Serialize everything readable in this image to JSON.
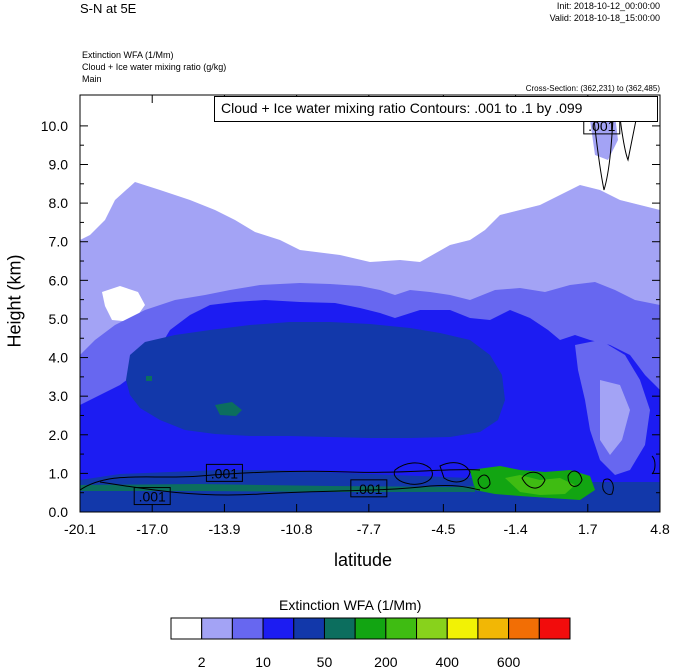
{
  "header": {
    "title": "S-N at 5E",
    "init": "Init: 2018-10-12_00:00:00",
    "valid": "Valid: 2018-10-18_15:00:00",
    "field1": "Extinction WFA   (1/Mm)",
    "field2": "Cloud + Ice water mixing ratio   (g/kg)",
    "field3": "Main",
    "cross_section": "Cross-Section: (362,231) to (362,485)"
  },
  "chart_data": {
    "type": "heatmap",
    "xlabel": "latitude",
    "ylabel": "Height (km)",
    "x_ticks": [
      "-20.1",
      "-17.0",
      "-13.9",
      "-10.8",
      "-7.7",
      "-4.5",
      "-1.4",
      "1.7",
      "4.8"
    ],
    "y_ticks": [
      "0.0",
      "1.0",
      "2.0",
      "3.0",
      "4.0",
      "5.0",
      "6.0",
      "7.0",
      "8.0",
      "9.0",
      "10.0"
    ],
    "xlim": [
      -20.1,
      4.8
    ],
    "ylim": [
      0,
      10.8
    ],
    "contour_title": "Cloud + Ice water mixing ratio Contours: .001 to .1 by .099",
    "contour_labels": [
      {
        "text": ".001",
        "lat": -17.0,
        "h": 0.4
      },
      {
        "text": ".001",
        "lat": -13.9,
        "h": 1.0
      },
      {
        "text": ".001",
        "lat": -7.7,
        "h": 0.6
      },
      {
        "text": ".001",
        "lat": 2.3,
        "h": 10.0
      }
    ],
    "colorbar": {
      "title": "Extinction WFA  (1/Mm)",
      "colors": [
        "#ffffff",
        "#a3a3f5",
        "#6767f0",
        "#1c1cf2",
        "#1238aa",
        "#0c6e5e",
        "#12a512",
        "#3fbc12",
        "#88d21c",
        "#f2f205",
        "#f2b705",
        "#f26e05",
        "#f20c0c"
      ],
      "labels": [
        "2",
        "10",
        "50",
        "200",
        "400",
        "600"
      ]
    }
  }
}
